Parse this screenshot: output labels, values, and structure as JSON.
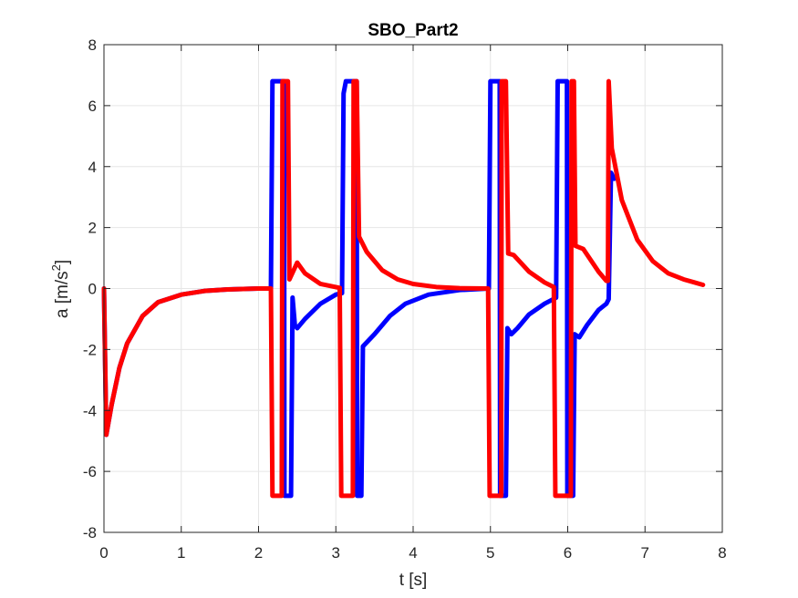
{
  "chart_data": {
    "type": "line",
    "title": "SBO_Part2",
    "xlabel": "t [s]",
    "ylabel_main": "a [m/s",
    "ylabel_sup": "2",
    "ylabel_end": "]",
    "xlim": [
      0,
      8
    ],
    "ylim": [
      -8,
      8
    ],
    "xticks": [
      0,
      1,
      2,
      3,
      4,
      5,
      6,
      7,
      8
    ],
    "yticks": [
      -8,
      -6,
      -4,
      -2,
      0,
      2,
      4,
      6,
      8
    ],
    "xtick_labels": [
      "0",
      "1",
      "2",
      "3",
      "4",
      "5",
      "6",
      "7",
      "8"
    ],
    "ytick_labels": [
      "-8",
      "-6",
      "-4",
      "-2",
      "0",
      "2",
      "4",
      "6",
      "8"
    ],
    "grid": true,
    "series": [
      {
        "color": "#0000ff",
        "points": [
          [
            0,
            0
          ],
          [
            0.03,
            -4.8
          ],
          [
            0.1,
            -3.8
          ],
          [
            0.2,
            -2.6
          ],
          [
            0.3,
            -1.8
          ],
          [
            0.5,
            -0.9
          ],
          [
            0.7,
            -0.45
          ],
          [
            1.0,
            -0.2
          ],
          [
            1.3,
            -0.08
          ],
          [
            1.6,
            -0.03
          ],
          [
            2.0,
            0
          ],
          [
            2.16,
            0
          ],
          [
            2.18,
            6.8
          ],
          [
            2.33,
            6.8
          ],
          [
            2.335,
            -6.8
          ],
          [
            2.42,
            -6.8
          ],
          [
            2.44,
            -0.3
          ],
          [
            2.47,
            -1.2
          ],
          [
            2.5,
            -1.3
          ],
          [
            2.6,
            -1.0
          ],
          [
            2.8,
            -0.5
          ],
          [
            3.0,
            -0.2
          ],
          [
            3.08,
            -0.15
          ],
          [
            3.1,
            6.4
          ],
          [
            3.13,
            6.8
          ],
          [
            3.27,
            6.8
          ],
          [
            3.275,
            -6.8
          ],
          [
            3.33,
            -6.8
          ],
          [
            3.35,
            -1.9
          ],
          [
            3.5,
            -1.5
          ],
          [
            3.7,
            -0.9
          ],
          [
            3.9,
            -0.5
          ],
          [
            4.2,
            -0.2
          ],
          [
            4.6,
            -0.05
          ],
          [
            4.98,
            0
          ],
          [
            5.0,
            6.8
          ],
          [
            5.12,
            6.8
          ],
          [
            5.125,
            -6.8
          ],
          [
            5.2,
            -6.8
          ],
          [
            5.22,
            -1.3
          ],
          [
            5.27,
            -1.5
          ],
          [
            5.35,
            -1.3
          ],
          [
            5.5,
            -0.85
          ],
          [
            5.7,
            -0.5
          ],
          [
            5.85,
            -0.3
          ],
          [
            5.87,
            6.8
          ],
          [
            5.99,
            6.8
          ],
          [
            5.995,
            -6.8
          ],
          [
            6.07,
            -6.8
          ],
          [
            6.09,
            -1.5
          ],
          [
            6.15,
            -1.6
          ],
          [
            6.25,
            -1.2
          ],
          [
            6.4,
            -0.7
          ],
          [
            6.5,
            -0.5
          ],
          [
            6.53,
            -0.35
          ],
          [
            6.56,
            3.8
          ],
          [
            6.6,
            3.6
          ]
        ]
      },
      {
        "color": "#ff0000",
        "points": [
          [
            0,
            0
          ],
          [
            0.03,
            -4.8
          ],
          [
            0.1,
            -3.8
          ],
          [
            0.2,
            -2.6
          ],
          [
            0.3,
            -1.8
          ],
          [
            0.5,
            -0.9
          ],
          [
            0.7,
            -0.45
          ],
          [
            1.0,
            -0.2
          ],
          [
            1.3,
            -0.08
          ],
          [
            1.6,
            -0.03
          ],
          [
            2.0,
            0
          ],
          [
            2.16,
            0
          ],
          [
            2.18,
            -6.8
          ],
          [
            2.3,
            -6.8
          ],
          [
            2.31,
            6.8
          ],
          [
            2.38,
            6.8
          ],
          [
            2.4,
            0.3
          ],
          [
            2.5,
            0.85
          ],
          [
            2.6,
            0.5
          ],
          [
            2.8,
            0.15
          ],
          [
            3.05,
            0.02
          ],
          [
            3.07,
            -6.8
          ],
          [
            3.22,
            -6.8
          ],
          [
            3.23,
            6.8
          ],
          [
            3.27,
            6.8
          ],
          [
            3.3,
            1.7
          ],
          [
            3.4,
            1.2
          ],
          [
            3.6,
            0.6
          ],
          [
            3.8,
            0.3
          ],
          [
            4.0,
            0.15
          ],
          [
            4.3,
            0.05
          ],
          [
            4.6,
            0.01
          ],
          [
            4.97,
            0
          ],
          [
            4.99,
            -6.8
          ],
          [
            5.14,
            -6.8
          ],
          [
            5.145,
            6.8
          ],
          [
            5.2,
            6.8
          ],
          [
            5.23,
            1.15
          ],
          [
            5.3,
            1.1
          ],
          [
            5.5,
            0.55
          ],
          [
            5.7,
            0.2
          ],
          [
            5.82,
            0.05
          ],
          [
            5.84,
            -6.8
          ],
          [
            6.04,
            -6.8
          ],
          [
            6.05,
            6.8
          ],
          [
            6.08,
            6.8
          ],
          [
            6.1,
            1.4
          ],
          [
            6.2,
            1.3
          ],
          [
            6.4,
            0.55
          ],
          [
            6.5,
            0.25
          ],
          [
            6.52,
            0.25
          ],
          [
            6.53,
            6.8
          ],
          [
            6.57,
            4.6
          ],
          [
            6.7,
            2.9
          ],
          [
            6.9,
            1.6
          ],
          [
            7.1,
            0.9
          ],
          [
            7.3,
            0.5
          ],
          [
            7.5,
            0.3
          ],
          [
            7.75,
            0.12
          ]
        ]
      }
    ]
  }
}
